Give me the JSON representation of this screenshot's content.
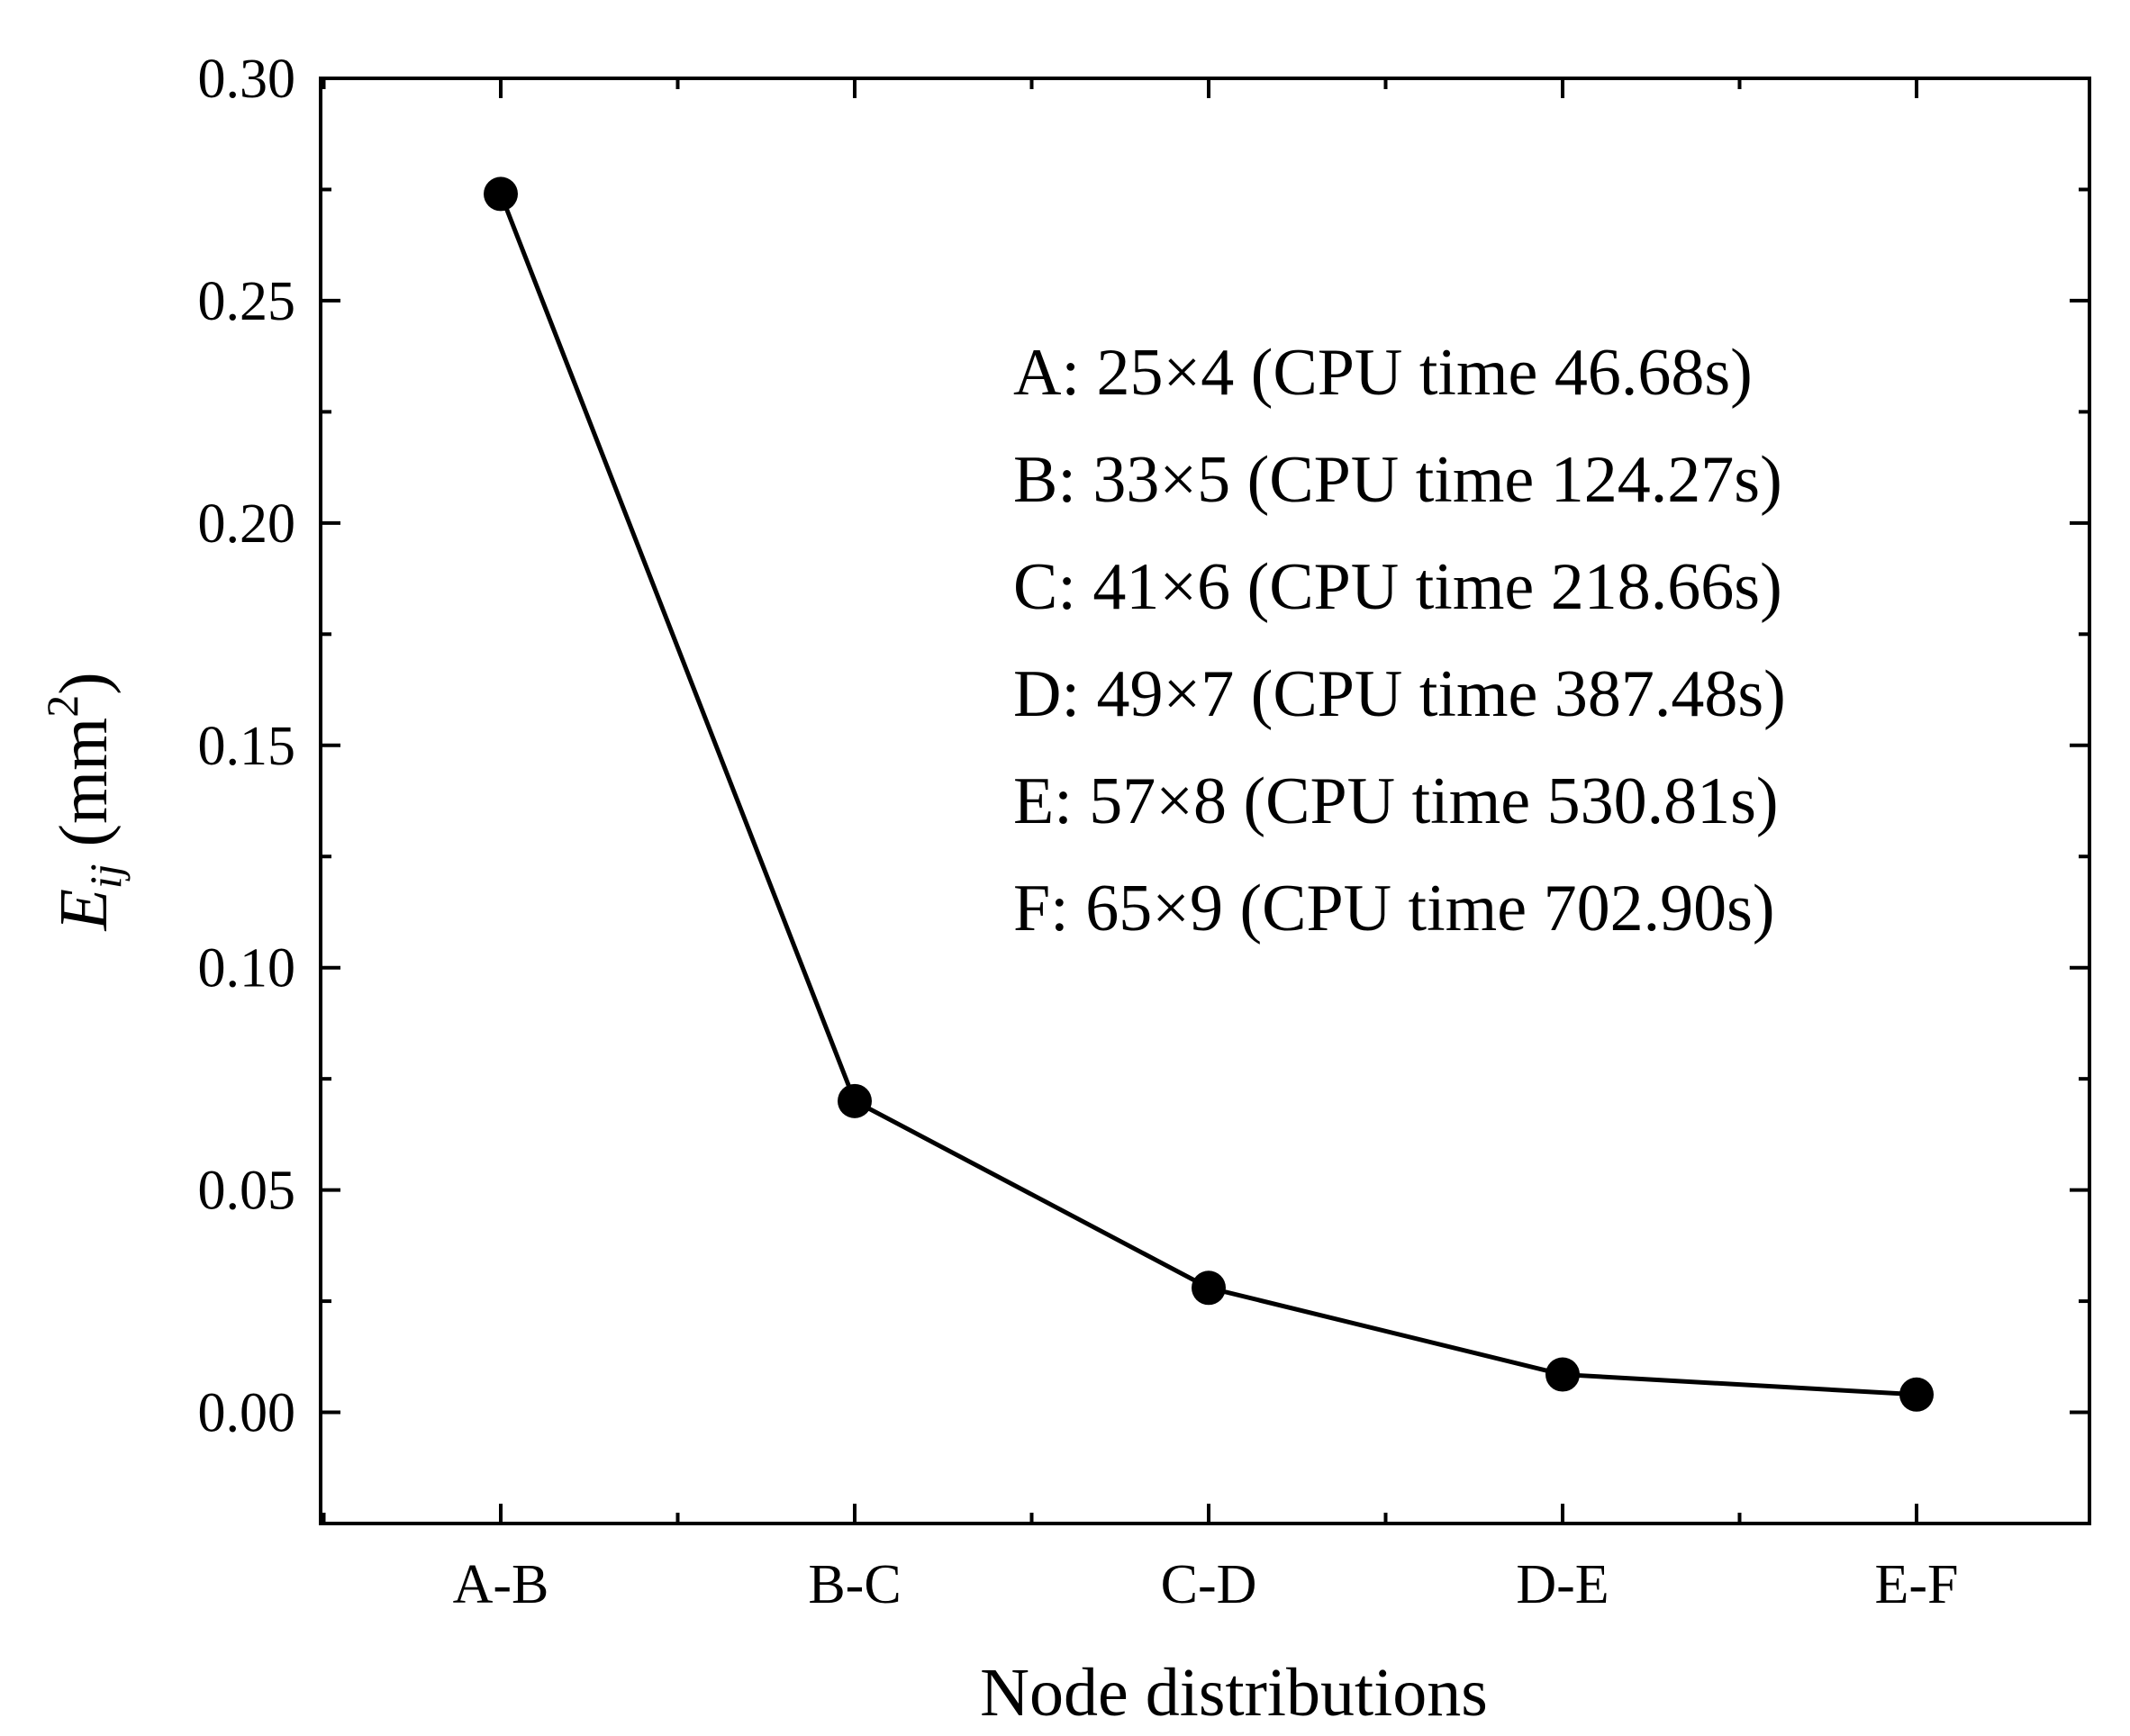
{
  "chart_data": {
    "type": "line",
    "title": "",
    "xlabel": "Node distributions",
    "ylabel": {
      "base": "E",
      "subscript": "ij",
      "unit_open": " (mm",
      "unit_sup": "2",
      "unit_close": ")"
    },
    "categories": [
      "A-B",
      "B-C",
      "C-D",
      "D-E",
      "E-F"
    ],
    "series": [
      {
        "name": "Eij",
        "values": [
          0.274,
          0.07,
          0.028,
          0.0085,
          0.004
        ]
      }
    ],
    "ylim": [
      -0.025,
      0.3
    ],
    "yticks": [
      0.0,
      0.05,
      0.1,
      0.15,
      0.2,
      0.25,
      0.3
    ],
    "ytick_labels": [
      "0.00",
      "0.05",
      "0.10",
      "0.15",
      "0.20",
      "0.25",
      "0.30"
    ],
    "grid": false,
    "annotations": [
      "A: 25×4 (CPU time 46.68s)",
      "B: 33×5 (CPU time 124.27s)",
      "C: 41×6 (CPU time 218.66s)",
      "D: 49×7 (CPU time 387.48s)",
      "E: 57×8 (CPU time 530.81s)",
      "F: 65×9 (CPU time 702.90s)"
    ],
    "colors": {
      "line": "#000000",
      "marker": "#000000",
      "axis": "#000000"
    }
  }
}
